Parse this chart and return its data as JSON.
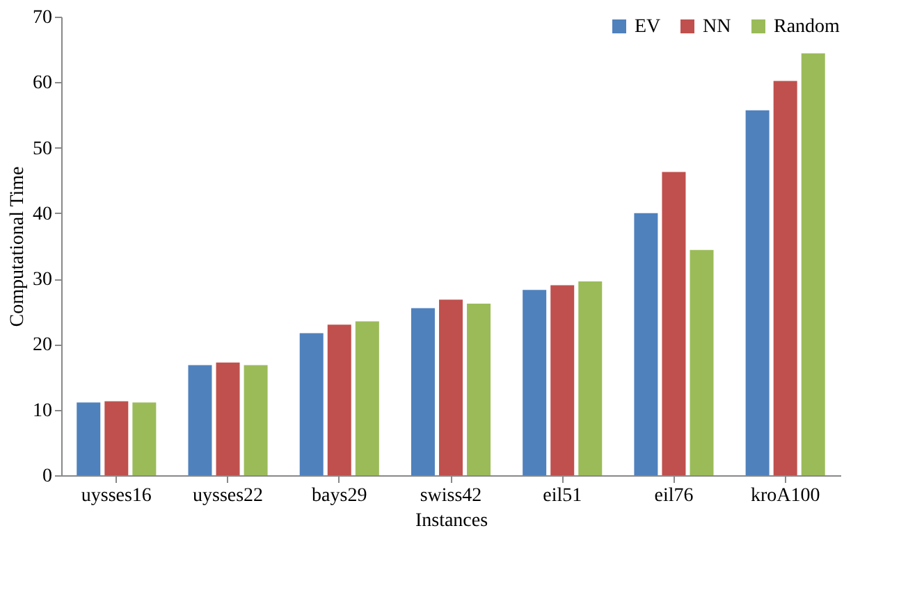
{
  "chart_data": {
    "type": "bar",
    "xlabel": "Instances",
    "ylabel": "Computational Time",
    "categories": [
      "uysses16",
      "uysses22",
      "bays29",
      "swiss42",
      "eil51",
      "eil76",
      "kroA100"
    ],
    "series": [
      {
        "name": "EV",
        "color": "#4f81bd",
        "values": [
          11.1,
          16.8,
          21.7,
          25.5,
          28.3,
          40.0,
          55.7
        ]
      },
      {
        "name": "NN",
        "color": "#c0504d",
        "values": [
          11.3,
          17.2,
          23.0,
          26.8,
          29.0,
          46.3,
          60.2
        ]
      },
      {
        "name": "Random",
        "color": "#9bbb59",
        "values": [
          11.1,
          16.8,
          23.5,
          26.2,
          29.6,
          34.4,
          64.4
        ]
      }
    ],
    "ylim": [
      0,
      70
    ],
    "yticks": [
      0,
      10,
      20,
      30,
      40,
      50,
      60,
      70
    ],
    "grid": false,
    "legend": "top right"
  }
}
